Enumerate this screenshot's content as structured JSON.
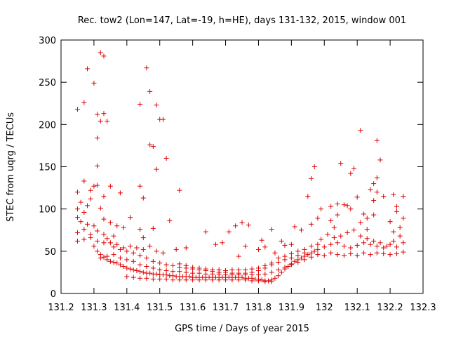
{
  "chart_data": {
    "type": "scatter",
    "title": "Rec. tow2 (Lon=147, Lat=-19, h=HE), days 131-132, 2015, window 001",
    "xlabel": "GPS time / Days of year 2015",
    "ylabel": "STEC from uqrg / TECUs",
    "xlim": [
      131.2,
      132.3
    ],
    "ylim": [
      0,
      300
    ],
    "xticks": [
      "131.2",
      "131.3",
      "131.4",
      "131.5",
      "131.6",
      "131.7",
      "131.8",
      "131.9",
      "132",
      "132.1",
      "132.2",
      "132.3"
    ],
    "yticks": [
      "0",
      "50",
      "100",
      "150",
      "200",
      "250",
      "300"
    ],
    "grid": false,
    "legend": "none",
    "marker": "+",
    "color": "#dd0000",
    "points": [
      [
        131.25,
        218
      ],
      [
        131.27,
        226
      ],
      [
        131.28,
        266
      ],
      [
        131.3,
        249
      ],
      [
        131.32,
        285
      ],
      [
        131.33,
        281
      ],
      [
        131.31,
        212
      ],
      [
        131.31,
        184
      ],
      [
        131.32,
        204
      ],
      [
        131.33,
        213
      ],
      [
        131.34,
        204
      ],
      [
        131.31,
        151
      ],
      [
        131.27,
        133
      ],
      [
        131.25,
        120
      ],
      [
        131.29,
        122
      ],
      [
        131.3,
        127
      ],
      [
        131.31,
        128
      ],
      [
        131.35,
        127
      ],
      [
        131.38,
        119
      ],
      [
        131.33,
        115
      ],
      [
        131.29,
        112
      ],
      [
        131.26,
        108
      ],
      [
        131.27,
        96
      ],
      [
        131.32,
        101
      ],
      [
        131.28,
        104
      ],
      [
        131.25,
        100
      ],
      [
        131.44,
        224
      ],
      [
        131.46,
        267
      ],
      [
        131.47,
        239
      ],
      [
        131.49,
        223
      ],
      [
        131.47,
        176
      ],
      [
        131.48,
        174
      ],
      [
        131.5,
        206
      ],
      [
        131.51,
        206
      ],
      [
        131.49,
        147
      ],
      [
        131.52,
        160
      ],
      [
        131.44,
        127
      ],
      [
        131.56,
        122
      ],
      [
        131.45,
        113
      ],
      [
        131.41,
        90
      ],
      [
        131.53,
        86
      ],
      [
        131.48,
        77
      ],
      [
        131.44,
        76
      ],
      [
        131.45,
        66
      ],
      [
        132.11,
        193
      ],
      [
        132.16,
        181
      ],
      [
        132.17,
        158
      ],
      [
        132.05,
        154
      ],
      [
        132.09,
        148
      ],
      [
        132.08,
        142
      ],
      [
        131.97,
        150
      ],
      [
        131.96,
        136
      ],
      [
        132.16,
        137
      ],
      [
        132.15,
        130
      ],
      [
        132.14,
        123
      ],
      [
        132.16,
        120
      ],
      [
        132.18,
        115
      ],
      [
        132.21,
        117
      ],
      [
        132.24,
        115
      ],
      [
        131.95,
        115
      ],
      [
        132.1,
        114
      ],
      [
        131.99,
        100
      ],
      [
        132.02,
        103
      ],
      [
        132.04,
        106
      ],
      [
        132.06,
        105
      ],
      [
        132.07,
        104
      ],
      [
        132.08,
        100
      ],
      [
        132.04,
        93
      ],
      [
        132.02,
        86
      ],
      [
        132.12,
        94
      ],
      [
        132.13,
        89
      ],
      [
        132.15,
        93
      ],
      [
        132.11,
        84
      ],
      [
        132.13,
        76
      ],
      [
        132.15,
        110
      ],
      [
        132.22,
        103
      ],
      [
        132.22,
        97
      ],
      [
        132.24,
        89
      ],
      [
        132.23,
        78
      ],
      [
        132.2,
        85
      ],
      [
        132.21,
        73
      ],
      [
        132.03,
        78
      ],
      [
        131.98,
        89
      ],
      [
        131.96,
        82
      ],
      [
        131.93,
        75
      ],
      [
        131.91,
        79
      ],
      [
        131.25,
        90
      ],
      [
        131.26,
        85
      ],
      [
        131.28,
        82
      ],
      [
        131.3,
        80
      ],
      [
        131.33,
        88
      ],
      [
        131.35,
        84
      ],
      [
        131.37,
        80
      ],
      [
        131.39,
        78
      ],
      [
        131.25,
        72
      ],
      [
        131.27,
        76
      ],
      [
        131.29,
        70
      ],
      [
        131.31,
        74
      ],
      [
        131.33,
        70
      ],
      [
        131.34,
        65
      ],
      [
        131.36,
        68
      ],
      [
        131.25,
        62
      ],
      [
        131.27,
        64
      ],
      [
        131.29,
        66
      ],
      [
        131.31,
        62
      ],
      [
        131.33,
        60
      ],
      [
        131.35,
        60
      ],
      [
        131.37,
        58
      ],
      [
        131.39,
        54
      ],
      [
        131.41,
        56
      ],
      [
        131.43,
        54
      ],
      [
        131.45,
        52
      ],
      [
        131.47,
        56
      ],
      [
        131.49,
        50
      ],
      [
        131.51,
        48
      ],
      [
        131.55,
        52
      ],
      [
        131.58,
        54
      ],
      [
        131.3,
        56
      ],
      [
        131.31,
        50
      ],
      [
        131.32,
        46
      ],
      [
        131.33,
        43
      ],
      [
        131.34,
        40
      ],
      [
        131.35,
        38
      ],
      [
        131.36,
        37
      ],
      [
        131.37,
        36
      ],
      [
        131.38,
        34
      ],
      [
        131.39,
        32
      ],
      [
        131.4,
        30
      ],
      [
        131.41,
        29
      ],
      [
        131.42,
        28
      ],
      [
        131.43,
        27
      ],
      [
        131.44,
        26
      ],
      [
        131.45,
        25
      ],
      [
        131.46,
        24
      ],
      [
        131.47,
        24
      ],
      [
        131.48,
        23
      ],
      [
        131.49,
        23
      ],
      [
        131.5,
        22
      ],
      [
        131.51,
        22
      ],
      [
        131.52,
        22
      ],
      [
        131.53,
        21
      ],
      [
        131.54,
        21
      ],
      [
        131.55,
        20
      ],
      [
        131.56,
        20
      ],
      [
        131.57,
        20
      ],
      [
        131.58,
        20
      ],
      [
        131.59,
        20
      ],
      [
        131.6,
        19
      ],
      [
        131.61,
        19
      ],
      [
        131.62,
        19
      ],
      [
        131.63,
        19
      ],
      [
        131.64,
        19
      ],
      [
        131.65,
        19
      ],
      [
        131.66,
        19
      ],
      [
        131.67,
        19
      ],
      [
        131.68,
        19
      ],
      [
        131.69,
        19
      ],
      [
        131.7,
        19
      ],
      [
        131.71,
        19
      ],
      [
        131.72,
        19
      ],
      [
        131.73,
        19
      ],
      [
        131.74,
        19
      ],
      [
        131.75,
        19
      ],
      [
        131.76,
        18
      ],
      [
        131.77,
        18
      ],
      [
        131.78,
        18
      ],
      [
        131.79,
        17
      ],
      [
        131.8,
        17
      ],
      [
        131.81,
        16
      ],
      [
        131.82,
        15
      ],
      [
        131.83,
        15
      ],
      [
        131.84,
        16
      ],
      [
        131.85,
        18
      ],
      [
        131.86,
        21
      ],
      [
        131.87,
        25
      ],
      [
        131.88,
        29
      ],
      [
        131.89,
        32
      ],
      [
        131.9,
        35
      ],
      [
        131.91,
        38
      ],
      [
        131.92,
        40
      ],
      [
        131.93,
        42
      ],
      [
        131.94,
        44
      ],
      [
        131.95,
        46
      ],
      [
        131.96,
        48
      ],
      [
        131.97,
        50
      ],
      [
        131.98,
        52
      ],
      [
        131.32,
        42
      ],
      [
        131.34,
        44
      ],
      [
        131.36,
        46
      ],
      [
        131.38,
        42
      ],
      [
        131.4,
        40
      ],
      [
        131.42,
        38
      ],
      [
        131.44,
        34
      ],
      [
        131.46,
        32
      ],
      [
        131.48,
        30
      ],
      [
        131.5,
        28
      ],
      [
        131.52,
        27
      ],
      [
        131.54,
        26
      ],
      [
        131.56,
        26
      ],
      [
        131.58,
        25
      ],
      [
        131.6,
        24
      ],
      [
        131.62,
        24
      ],
      [
        131.64,
        23
      ],
      [
        131.66,
        23
      ],
      [
        131.68,
        23
      ],
      [
        131.7,
        22
      ],
      [
        131.72,
        22
      ],
      [
        131.74,
        22
      ],
      [
        131.76,
        22
      ],
      [
        131.78,
        22
      ],
      [
        131.8,
        22
      ],
      [
        131.82,
        23
      ],
      [
        131.84,
        25
      ],
      [
        131.86,
        28
      ],
      [
        131.88,
        31
      ],
      [
        131.9,
        34
      ],
      [
        131.92,
        37
      ],
      [
        131.94,
        40
      ],
      [
        131.96,
        43
      ],
      [
        131.98,
        46
      ],
      [
        131.36,
        55
      ],
      [
        131.38,
        52
      ],
      [
        131.4,
        50
      ],
      [
        131.42,
        48
      ],
      [
        131.44,
        45
      ],
      [
        131.46,
        42
      ],
      [
        131.48,
        38
      ],
      [
        131.5,
        36
      ],
      [
        131.52,
        34
      ],
      [
        131.54,
        33
      ],
      [
        131.56,
        31
      ],
      [
        131.58,
        30
      ],
      [
        131.6,
        29
      ],
      [
        131.62,
        28
      ],
      [
        131.64,
        27
      ],
      [
        131.66,
        26
      ],
      [
        131.68,
        25
      ],
      [
        131.7,
        25
      ],
      [
        131.72,
        24
      ],
      [
        131.74,
        24
      ],
      [
        131.76,
        24
      ],
      [
        131.78,
        25
      ],
      [
        131.8,
        27
      ],
      [
        131.82,
        30
      ],
      [
        131.84,
        34
      ],
      [
        131.86,
        37
      ],
      [
        131.88,
        40
      ],
      [
        131.9,
        42
      ],
      [
        131.92,
        45
      ],
      [
        131.94,
        48
      ],
      [
        131.4,
        20
      ],
      [
        131.42,
        19
      ],
      [
        131.44,
        18
      ],
      [
        131.46,
        18
      ],
      [
        131.48,
        17
      ],
      [
        131.5,
        17
      ],
      [
        131.52,
        17
      ],
      [
        131.54,
        16
      ],
      [
        131.56,
        16
      ],
      [
        131.58,
        16
      ],
      [
        131.6,
        16
      ],
      [
        131.62,
        16
      ],
      [
        131.64,
        16
      ],
      [
        131.66,
        16
      ],
      [
        131.68,
        16
      ],
      [
        131.7,
        16
      ],
      [
        131.72,
        16
      ],
      [
        131.74,
        16
      ],
      [
        131.76,
        16
      ],
      [
        131.78,
        15
      ],
      [
        131.8,
        15
      ],
      [
        131.82,
        14
      ],
      [
        131.84,
        14
      ],
      [
        131.64,
        73
      ],
      [
        131.71,
        73
      ],
      [
        131.73,
        80
      ],
      [
        131.75,
        84
      ],
      [
        131.77,
        81
      ],
      [
        131.84,
        76
      ],
      [
        131.81,
        63
      ],
      [
        131.82,
        55
      ],
      [
        131.67,
        58
      ],
      [
        131.69,
        60
      ],
      [
        131.76,
        56
      ],
      [
        131.74,
        44
      ],
      [
        131.8,
        52
      ],
      [
        131.85,
        48
      ],
      [
        131.88,
        57
      ],
      [
        131.9,
        58
      ],
      [
        131.87,
        62
      ],
      [
        132.0,
        45
      ],
      [
        132.02,
        48
      ],
      [
        132.04,
        46
      ],
      [
        132.06,
        45
      ],
      [
        132.08,
        47
      ],
      [
        132.1,
        45
      ],
      [
        132.12,
        48
      ],
      [
        132.14,
        46
      ],
      [
        132.16,
        48
      ],
      [
        132.18,
        47
      ],
      [
        132.2,
        46
      ],
      [
        132.22,
        47
      ],
      [
        132.24,
        49
      ],
      [
        132.0,
        55
      ],
      [
        132.02,
        58
      ],
      [
        132.04,
        60
      ],
      [
        132.06,
        56
      ],
      [
        132.08,
        54
      ],
      [
        132.1,
        57
      ],
      [
        132.12,
        60
      ],
      [
        132.14,
        58
      ],
      [
        132.16,
        56
      ],
      [
        132.18,
        54
      ],
      [
        132.2,
        58
      ],
      [
        132.22,
        55
      ],
      [
        132.24,
        60
      ],
      [
        132.01,
        70
      ],
      [
        132.03,
        66
      ],
      [
        132.05,
        68
      ],
      [
        132.07,
        72
      ],
      [
        132.09,
        75
      ],
      [
        132.11,
        68
      ],
      [
        132.13,
        65
      ],
      [
        132.15,
        62
      ],
      [
        132.17,
        60
      ],
      [
        132.19,
        56
      ],
      [
        132.21,
        62
      ],
      [
        132.23,
        68
      ],
      [
        131.99,
        64
      ],
      [
        131.98,
        58
      ],
      [
        131.96,
        56
      ],
      [
        131.94,
        52
      ],
      [
        131.92,
        50
      ],
      [
        131.9,
        47
      ],
      [
        131.88,
        44
      ],
      [
        131.86,
        42
      ],
      [
        131.84,
        36
      ],
      [
        131.82,
        33
      ],
      [
        131.8,
        30
      ],
      [
        131.78,
        29
      ],
      [
        131.76,
        28
      ],
      [
        131.74,
        28
      ],
      [
        131.72,
        28
      ],
      [
        131.7,
        27
      ],
      [
        131.68,
        28
      ],
      [
        131.66,
        28
      ],
      [
        131.64,
        29
      ],
      [
        131.62,
        30
      ],
      [
        131.6,
        31
      ],
      [
        131.58,
        33
      ],
      [
        131.56,
        35
      ]
    ]
  }
}
